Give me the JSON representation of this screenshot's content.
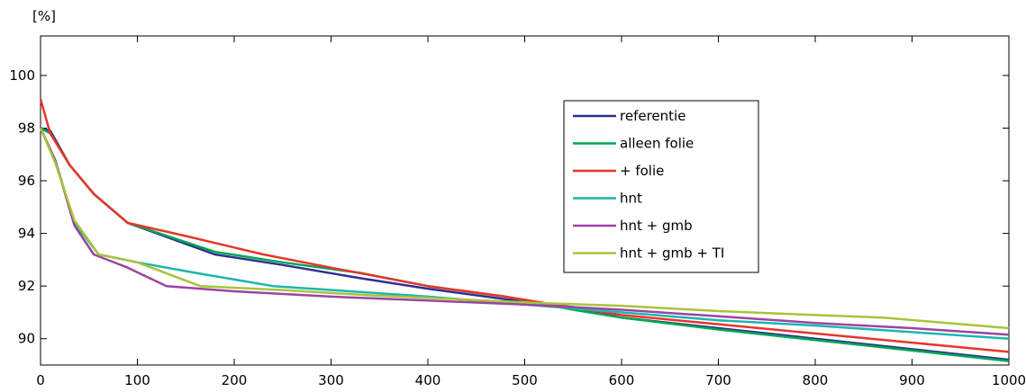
{
  "chart_data": {
    "type": "line",
    "ylabel": "[%]",
    "xlim": [
      0,
      1000
    ],
    "ylim": [
      89.0,
      101.5
    ],
    "xticks": [
      0,
      100,
      200,
      300,
      400,
      500,
      600,
      700,
      800,
      900,
      1000
    ],
    "yticks": [
      90,
      92,
      94,
      96,
      98,
      100
    ],
    "grid": false,
    "legend_position": "upper-center-right",
    "series": [
      {
        "name": "referentie",
        "color": "#2E3192",
        "x": [
          0,
          10,
          30,
          55,
          90,
          180,
          250,
          330,
          400,
          480,
          550,
          600,
          700,
          800,
          900,
          1000
        ],
        "y": [
          98.0,
          97.9,
          96.6,
          95.5,
          94.4,
          93.2,
          92.8,
          92.3,
          91.9,
          91.5,
          91.2,
          90.8,
          90.4,
          90.0,
          89.6,
          89.2
        ]
      },
      {
        "name": "alleen folie",
        "color": "#00A651",
        "x": [
          0,
          10,
          30,
          55,
          90,
          180,
          250,
          330,
          400,
          480,
          550,
          600,
          700,
          800,
          900,
          1000
        ],
        "y": [
          98.0,
          97.8,
          96.6,
          95.5,
          94.4,
          93.3,
          92.9,
          92.5,
          92.0,
          91.6,
          91.1,
          90.8,
          90.35,
          89.95,
          89.55,
          89.15
        ]
      },
      {
        "name": "+ folie",
        "color": "#E8352B",
        "x": [
          0,
          10,
          30,
          55,
          90,
          150,
          230,
          300,
          400,
          480,
          530,
          600,
          700,
          800,
          900,
          1000
        ],
        "y": [
          99.1,
          97.8,
          96.6,
          95.5,
          94.4,
          93.9,
          93.2,
          92.7,
          92.0,
          91.6,
          91.3,
          90.9,
          90.55,
          90.2,
          89.85,
          89.5
        ]
      },
      {
        "name": "hnt",
        "color": "#1DB5B0",
        "x": [
          0,
          15,
          35,
          60,
          100,
          160,
          240,
          320,
          400,
          500,
          600,
          700,
          800,
          900,
          1000
        ],
        "y": [
          98.0,
          96.8,
          94.4,
          93.2,
          92.9,
          92.5,
          92.0,
          91.8,
          91.6,
          91.3,
          91.0,
          90.7,
          90.5,
          90.25,
          90.0
        ]
      },
      {
        "name": "hnt + gmb",
        "color": "#9B44A3",
        "x": [
          0,
          15,
          35,
          55,
          90,
          130,
          200,
          300,
          400,
          500,
          600,
          700,
          800,
          900,
          1000
        ],
        "y": [
          98.0,
          96.8,
          94.3,
          93.2,
          92.7,
          92.0,
          91.8,
          91.6,
          91.45,
          91.3,
          91.1,
          90.85,
          90.6,
          90.4,
          90.15
        ]
      },
      {
        "name": "hnt + gmb + TI",
        "color": "#A8C43A",
        "x": [
          0,
          15,
          35,
          60,
          100,
          165,
          250,
          340,
          430,
          520,
          600,
          700,
          800,
          870,
          1000
        ],
        "y": [
          98.0,
          96.7,
          94.5,
          93.2,
          92.9,
          92.0,
          91.85,
          91.65,
          91.5,
          91.35,
          91.25,
          91.05,
          90.9,
          90.8,
          90.4
        ]
      }
    ]
  }
}
